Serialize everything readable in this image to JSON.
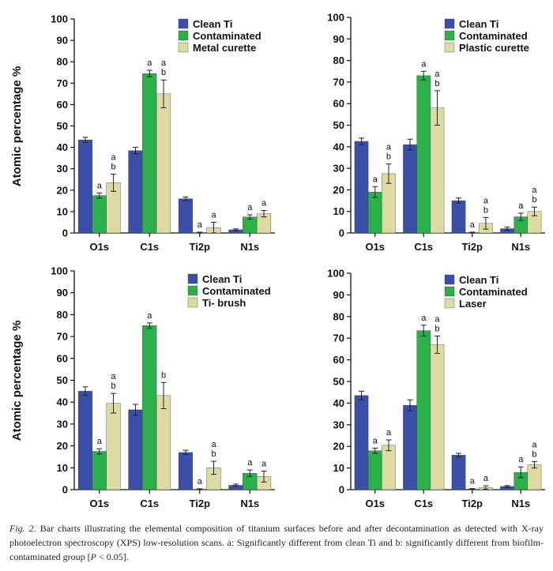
{
  "colors": {
    "clean": "#3a4fa8",
    "contaminated": "#2bb04a",
    "treated": "#dedaa3",
    "axis": "#111111",
    "error": "#222222"
  },
  "ylabel": "Atomic percentage %",
  "yticks": [
    "0",
    "10",
    "20",
    "30",
    "40",
    "50",
    "60",
    "70",
    "80",
    "90",
    "100"
  ],
  "caption": {
    "label": "Fig. 2.",
    "text": "Bar charts illustrating the elemental composition of titanium surfaces before and after decontamination as detected with X-ray photoelectron spectroscopy (XPS) low-resolution scans. a: Significantly different from clean Ti and b: significantly different from biofilm-contaminated group [",
    "p": "P",
    "tail": " < 0.05]."
  },
  "chart_data": [
    {
      "type": "bar",
      "title": "",
      "xlabel": "",
      "ylabel": "Atomic percentage %",
      "ylim": [
        0,
        100
      ],
      "categories": [
        "O1s",
        "C1s",
        "Ti2p",
        "N1s"
      ],
      "legend": "top-right",
      "series": [
        {
          "name": "Clean Ti",
          "values": [
            43.5,
            38.5,
            16,
            1.5
          ],
          "errors": [
            1.2,
            1.5,
            0.8,
            0.4
          ],
          "labels": [
            "",
            "",
            "",
            ""
          ]
        },
        {
          "name": "Contaminated",
          "values": [
            17.5,
            74.5,
            0.2,
            7.5
          ],
          "errors": [
            1.2,
            1.5,
            0.2,
            1
          ],
          "labels": [
            "a",
            "a",
            "a",
            "a"
          ]
        },
        {
          "name": "Metal curette",
          "values": [
            23.5,
            65,
            2.5,
            9
          ],
          "errors": [
            4,
            6.5,
            2.5,
            1.5
          ],
          "labels": [
            "a\nb",
            "a\nb",
            "a",
            "a"
          ]
        }
      ]
    },
    {
      "type": "bar",
      "title": "",
      "xlabel": "",
      "ylabel": "Atomic percentage %",
      "ylim": [
        0,
        100
      ],
      "categories": [
        "O1s",
        "C1s",
        "Ti2p",
        "N1s"
      ],
      "legend": "top-right",
      "series": [
        {
          "name": "Clean Ti",
          "values": [
            42.5,
            41,
            15,
            2
          ],
          "errors": [
            1.5,
            2.5,
            1.2,
            0.7
          ],
          "labels": [
            "",
            "",
            "",
            ""
          ]
        },
        {
          "name": "Contaminated",
          "values": [
            19,
            73,
            0.2,
            7.5
          ],
          "errors": [
            2.5,
            2,
            0.2,
            1.7
          ],
          "labels": [
            "a",
            "a",
            "a",
            "a"
          ]
        },
        {
          "name": "Plastic curette",
          "values": [
            27.5,
            58,
            4.5,
            10
          ],
          "errors": [
            4.5,
            8,
            2.7,
            2
          ],
          "labels": [
            "a\nb",
            "a\nb",
            "a\nb",
            "a\nb"
          ]
        }
      ]
    },
    {
      "type": "bar",
      "title": "",
      "xlabel": "",
      "ylabel": "Atomic percentage %",
      "ylim": [
        0,
        100
      ],
      "categories": [
        "O1s",
        "C1s",
        "Ti2p",
        "N1s"
      ],
      "legend": "top-right",
      "series": [
        {
          "name": "Clean Ti",
          "values": [
            45,
            36.5,
            17,
            2
          ],
          "errors": [
            2,
            2.5,
            1,
            0.5
          ],
          "labels": [
            "",
            "",
            "",
            ""
          ]
        },
        {
          "name": "Contaminated",
          "values": [
            17.5,
            75,
            0.2,
            7.5
          ],
          "errors": [
            1.2,
            1.2,
            0.2,
            1.5
          ],
          "labels": [
            "a",
            "a",
            "a",
            "a"
          ]
        },
        {
          "name": "Ti- brush",
          "values": [
            39.5,
            43,
            10,
            6
          ],
          "errors": [
            4.5,
            6,
            3,
            2.5
          ],
          "labels": [
            "a\nb",
            "b",
            "a\nb",
            "a"
          ]
        }
      ]
    },
    {
      "type": "bar",
      "title": "",
      "xlabel": "",
      "ylabel": "Atomic percentage %",
      "ylim": [
        0,
        100
      ],
      "categories": [
        "O1s",
        "C1s",
        "Ti2p",
        "N1s"
      ],
      "legend": "top-right",
      "series": [
        {
          "name": "Clean Ti",
          "values": [
            43.5,
            39,
            16,
            1.5
          ],
          "errors": [
            2,
            2.5,
            0.8,
            0.4
          ],
          "labels": [
            "",
            "",
            "",
            ""
          ]
        },
        {
          "name": "Contaminated",
          "values": [
            18,
            73.5,
            0.3,
            8
          ],
          "errors": [
            1.2,
            2.5,
            0.2,
            2.5
          ],
          "labels": [
            "a",
            "a",
            "a",
            "a"
          ]
        },
        {
          "name": "Laser",
          "values": [
            20.5,
            67,
            1,
            11.5
          ],
          "errors": [
            2.5,
            4,
            0.8,
            1.5
          ],
          "labels": [
            "a",
            "a\nb",
            "a",
            "a\nb"
          ]
        }
      ]
    }
  ]
}
